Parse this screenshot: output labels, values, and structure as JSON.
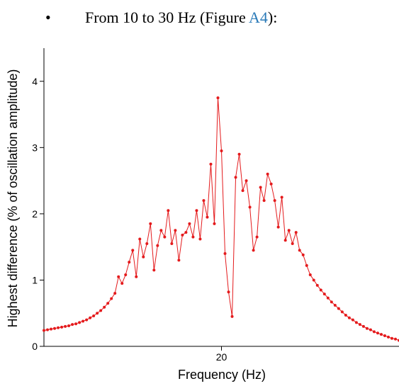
{
  "bullet": {
    "text": "From 10 to 30 Hz (Figure ",
    "link": "A4",
    "after": "):"
  },
  "chart_data": {
    "type": "line",
    "xlabel": "Frequency (Hz)",
    "ylabel": "Highest difference (% of oscillation amplitude)",
    "xlim": [
      10,
      30
    ],
    "ylim": [
      0,
      4.5
    ],
    "xticks": [
      20
    ],
    "yticks": [
      0,
      1,
      2,
      3,
      4
    ],
    "series": [
      {
        "name": null,
        "color": "#e41a1c",
        "x": [
          10.0,
          10.2,
          10.4,
          10.6,
          10.8,
          11.0,
          11.2,
          11.4,
          11.6,
          11.8,
          12.0,
          12.2,
          12.4,
          12.6,
          12.8,
          13.0,
          13.2,
          13.4,
          13.6,
          13.8,
          14.0,
          14.2,
          14.4,
          14.6,
          14.8,
          15.0,
          15.2,
          15.4,
          15.6,
          15.8,
          16.0,
          16.2,
          16.4,
          16.6,
          16.8,
          17.0,
          17.2,
          17.4,
          17.6,
          17.8,
          18.0,
          18.2,
          18.4,
          18.6,
          18.8,
          19.0,
          19.2,
          19.4,
          19.6,
          19.8,
          20.0,
          20.2,
          20.4,
          20.6,
          20.8,
          21.0,
          21.2,
          21.4,
          21.6,
          21.8,
          22.0,
          22.2,
          22.4,
          22.6,
          22.8,
          23.0,
          23.2,
          23.4,
          23.6,
          23.8,
          24.0,
          24.2,
          24.4,
          24.6,
          24.8,
          25.0,
          25.2,
          25.4,
          25.6,
          25.8,
          26.0,
          26.2,
          26.4,
          26.6,
          26.8,
          27.0,
          27.2,
          27.4,
          27.6,
          27.8,
          28.0,
          28.2,
          28.4,
          28.6,
          28.8,
          29.0,
          29.2,
          29.4,
          29.6,
          29.8,
          30.0
        ],
        "values": [
          0.24,
          0.25,
          0.26,
          0.27,
          0.28,
          0.29,
          0.3,
          0.31,
          0.33,
          0.34,
          0.36,
          0.38,
          0.4,
          0.43,
          0.46,
          0.5,
          0.54,
          0.59,
          0.65,
          0.72,
          0.8,
          1.05,
          0.95,
          1.08,
          1.27,
          1.45,
          1.05,
          1.62,
          1.35,
          1.55,
          1.85,
          1.15,
          1.52,
          1.75,
          1.65,
          2.05,
          1.55,
          1.75,
          1.3,
          1.68,
          1.72,
          1.85,
          1.65,
          2.05,
          1.62,
          2.2,
          1.95,
          2.75,
          1.85,
          3.75,
          2.95,
          1.4,
          0.82,
          0.45,
          2.55,
          2.9,
          2.35,
          2.5,
          2.1,
          1.45,
          1.65,
          2.4,
          2.2,
          2.6,
          2.45,
          2.2,
          1.8,
          2.25,
          1.6,
          1.75,
          1.55,
          1.72,
          1.45,
          1.38,
          1.22,
          1.08,
          1.0,
          0.92,
          0.85,
          0.79,
          0.73,
          0.67,
          0.62,
          0.57,
          0.52,
          0.47,
          0.43,
          0.4,
          0.36,
          0.33,
          0.3,
          0.27,
          0.25,
          0.22,
          0.2,
          0.18,
          0.16,
          0.14,
          0.12,
          0.11,
          0.09
        ]
      }
    ]
  }
}
